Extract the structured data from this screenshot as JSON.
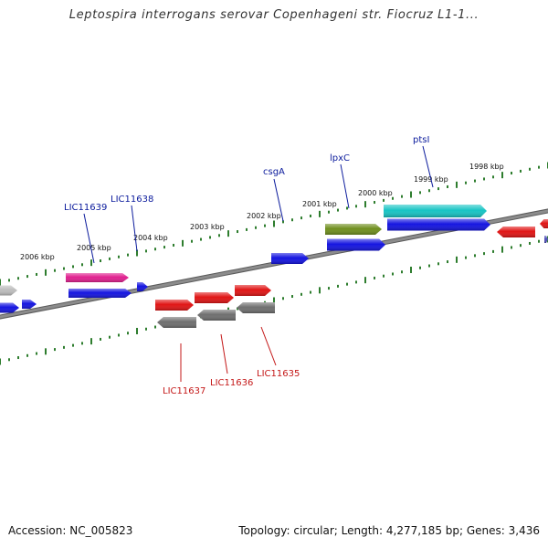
{
  "title": "Leptospira interrogans serovar Copenhageni str. Fiocruz L1-1...",
  "footer": {
    "accession": "Accession: NC_005823",
    "summary": "Topology: circular; Length: 4,277,185 bp; Genes: 3,436"
  },
  "colors": {
    "background": "#ffffff",
    "backbone": "#8c8c8c",
    "tick": "#2e7d2e",
    "top_label": "#0a1a9c",
    "bottom_label": "#c41818",
    "blue": "#1515e0",
    "red": "#e01515",
    "magenta": "#e0208f",
    "cyan": "#18c4c4",
    "olive": "#6f8f1e",
    "gray": "#6f6f6f",
    "lightgray": "#bdbdbd",
    "purple": "#5050b8"
  },
  "scale": {
    "unit": "kbp",
    "labels": [
      "2006 kbp",
      "2005 kbp",
      "2004 kbp",
      "2003 kbp",
      "2002 kbp",
      "2001 kbp",
      "2000 kbp",
      "1999 kbp",
      "1998 kbp"
    ]
  },
  "gene_labels": {
    "top": [
      "LIC11639",
      "LIC11638",
      "csgA",
      "lpxC",
      "ptsI"
    ],
    "bottom": [
      "LIC11637",
      "LIC11636",
      "LIC11635"
    ]
  }
}
